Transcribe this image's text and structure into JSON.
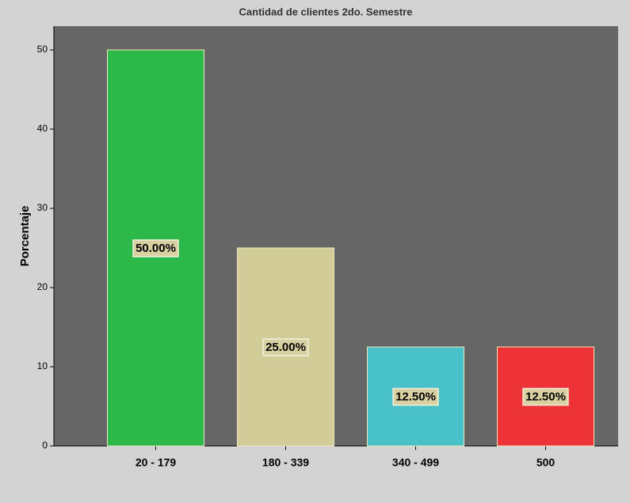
{
  "chart_data": {
    "type": "bar",
    "title": "Cantidad de clientes 2do. Semestre",
    "y_label": "Porcentaje",
    "categories": [
      "20 - 179",
      "180 - 339",
      "340 - 499",
      "500"
    ],
    "values": [
      50,
      25,
      12.5,
      12.5
    ],
    "value_labels": [
      "50.00%",
      "25.00%",
      "12.50%",
      "12.50%"
    ],
    "colors": [
      "#2db84a",
      "#d2cc98",
      "#48c2c8",
      "#ee3338"
    ],
    "ylim": [
      0,
      53
    ],
    "yticks": [
      0,
      10,
      20,
      30,
      40,
      50
    ],
    "grid": false
  }
}
